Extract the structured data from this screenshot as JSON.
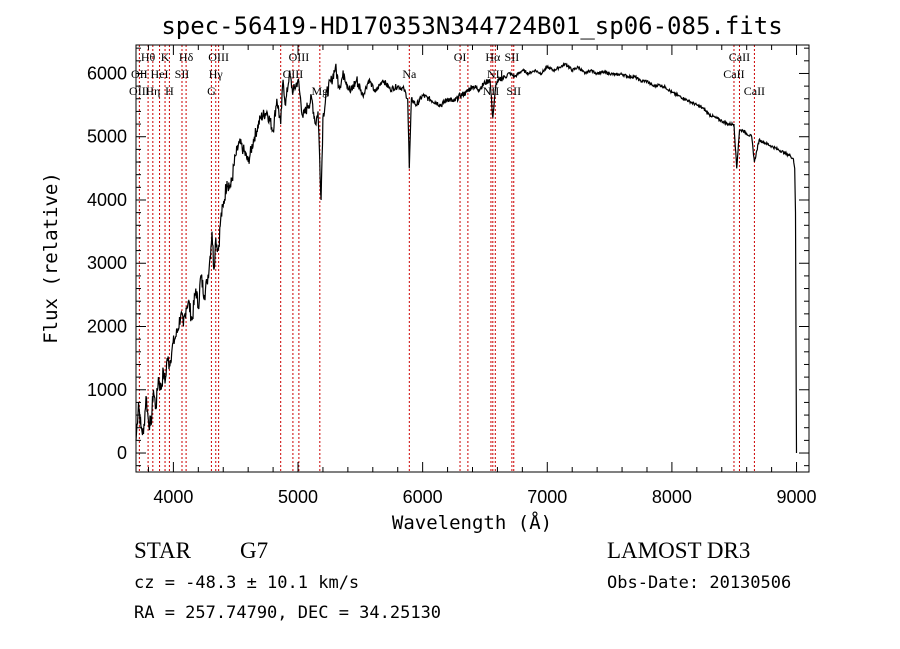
{
  "chart_data": {
    "type": "line",
    "title": "spec-56419-HD170353N344724B01_sp06-085.fits",
    "xlabel": "Wavelength (Å)",
    "ylabel": "Flux (relative)",
    "xlim": [
      3700,
      9100
    ],
    "ylim": [
      -300,
      6450
    ],
    "xticks": [
      4000,
      5000,
      6000,
      7000,
      8000,
      9000
    ],
    "yticks": [
      0,
      1000,
      2000,
      3000,
      4000,
      5000,
      6000
    ],
    "grid": false,
    "series": [
      {
        "x": [
          3700,
          3720,
          3740,
          3760,
          3780,
          3800,
          3820,
          3840,
          3860,
          3880,
          3900,
          3920,
          3933,
          3950,
          3968,
          3990,
          4010,
          4030,
          4060,
          4080,
          4102,
          4120,
          4150,
          4180,
          4200,
          4220,
          4250,
          4270,
          4290,
          4310,
          4325,
          4340,
          4360,
          4380,
          4400,
          4430,
          4460,
          4500,
          4530,
          4560,
          4600,
          4650,
          4700,
          4750,
          4800,
          4830,
          4861,
          4880,
          4900,
          4930,
          4960,
          5000,
          5040,
          5080,
          5110,
          5140,
          5160,
          5175,
          5185,
          5200,
          5230,
          5270,
          5300,
          5330,
          5370,
          5420,
          5470,
          5520,
          5570,
          5620,
          5680,
          5740,
          5800,
          5850,
          5880,
          5893,
          5910,
          5950,
          6000,
          6050,
          6100,
          6150,
          6200,
          6250,
          6300,
          6350,
          6400,
          6450,
          6500,
          6540,
          6563,
          6590,
          6620,
          6660,
          6700,
          6740,
          6800,
          6850,
          6900,
          6950,
          7000,
          7050,
          7100,
          7150,
          7200,
          7250,
          7300,
          7350,
          7400,
          7450,
          7500,
          7550,
          7600,
          7650,
          7700,
          7750,
          7800,
          7850,
          7900,
          7950,
          8000,
          8050,
          8100,
          8150,
          8200,
          8250,
          8300,
          8350,
          8400,
          8450,
          8498,
          8520,
          8542,
          8570,
          8600,
          8640,
          8662,
          8700,
          8750,
          8800,
          8850,
          8900,
          8950,
          8975,
          8985,
          8992,
          8997,
          9000
        ],
        "y": [
          200,
          800,
          400,
          300,
          900,
          500,
          450,
          1000,
          700,
          1200,
          1000,
          1300,
          1100,
          1500,
          1400,
          1650,
          1800,
          1900,
          2200,
          2000,
          2300,
          2400,
          2100,
          2600,
          2300,
          2800,
          2500,
          2700,
          3000,
          3500,
          2900,
          3400,
          3200,
          3700,
          3900,
          4300,
          4200,
          4700,
          4900,
          4800,
          4600,
          5000,
          5300,
          5400,
          5100,
          5600,
          5200,
          5900,
          5500,
          6000,
          5700,
          5900,
          5300,
          5500,
          5600,
          5200,
          5400,
          4600,
          4000,
          5300,
          5700,
          5900,
          6100,
          5800,
          6000,
          5700,
          5900,
          5650,
          5900,
          5700,
          5900,
          5750,
          5800,
          5750,
          5600,
          4500,
          5600,
          5500,
          5650,
          5600,
          5550,
          5500,
          5600,
          5550,
          5650,
          5700,
          5800,
          5750,
          5850,
          5900,
          5300,
          5850,
          5900,
          5950,
          6000,
          5950,
          6050,
          6000,
          6050,
          6000,
          6100,
          6050,
          6100,
          6150,
          6050,
          6100,
          6000,
          6050,
          6000,
          6020,
          6000,
          5980,
          5990,
          5950,
          5950,
          5880,
          5880,
          5800,
          5820,
          5780,
          5700,
          5650,
          5600,
          5550,
          5500,
          5450,
          5350,
          5300,
          5250,
          5200,
          5200,
          4500,
          5100,
          5100,
          5050,
          5000,
          4600,
          4950,
          4900,
          4850,
          4800,
          4750,
          4700,
          4650,
          4500,
          3800,
          1000,
          0
        ],
        "color": "#000000"
      }
    ],
    "line_labels": [
      {
        "text": "Hθ",
        "x": 3797,
        "row": 0
      },
      {
        "text": "OII",
        "x": 3727,
        "row": 1
      },
      {
        "text": "OIII",
        "x": 3727,
        "row": 2
      },
      {
        "text": "Hη",
        "x": 3835,
        "row": 2
      },
      {
        "text": "K",
        "x": 3933,
        "row": 0
      },
      {
        "text": "HeI",
        "x": 3889,
        "row": 1
      },
      {
        "text": "H",
        "x": 3968,
        "row": 2
      },
      {
        "text": "SII",
        "x": 4069,
        "row": 1
      },
      {
        "text": "Hδ",
        "x": 4102,
        "row": 0
      },
      {
        "text": "OIII",
        "x": 4363,
        "row": 0
      },
      {
        "text": "Hγ",
        "x": 4340,
        "row": 1
      },
      {
        "text": "G",
        "x": 4305,
        "row": 2
      },
      {
        "text": "OIII",
        "x": 5007,
        "row": 0
      },
      {
        "text": "OIII",
        "x": 4959,
        "row": 1
      },
      {
        "text": "Mg",
        "x": 5175,
        "row": 2
      },
      {
        "text": "Na",
        "x": 5893,
        "row": 1
      },
      {
        "text": "OI",
        "x": 6300,
        "row": 0
      },
      {
        "text": "Hα",
        "x": 6563,
        "row": 0
      },
      {
        "text": "SII",
        "x": 6716,
        "row": 0
      },
      {
        "text": "NII",
        "x": 6583,
        "row": 1
      },
      {
        "text": "NII",
        "x": 6548,
        "row": 2
      },
      {
        "text": "SII",
        "x": 6731,
        "row": 2
      },
      {
        "text": "CaII",
        "x": 8542,
        "row": 0
      },
      {
        "text": "CaII",
        "x": 8498,
        "row": 1
      },
      {
        "text": "CaII",
        "x": 8662,
        "row": 2
      }
    ],
    "line_markers": [
      3727,
      3797,
      3835,
      3889,
      3933,
      3968,
      4069,
      4102,
      4305,
      4340,
      4363,
      4861,
      4959,
      5007,
      5175,
      5893,
      6300,
      6363,
      6548,
      6563,
      6583,
      6716,
      6731,
      8498,
      8542,
      8662
    ]
  },
  "info": {
    "object_class": "STAR",
    "subclass": "G7",
    "survey": "LAMOST DR3",
    "cz": "cz = -48.3 ± 10.1 km/s",
    "obs_date": "Obs-Date: 20130506",
    "coords": "RA = 257.74790, DEC =  34.25130"
  },
  "colors": {
    "line": "#000000",
    "marker": "#cc0000",
    "background": "#ffffff"
  }
}
